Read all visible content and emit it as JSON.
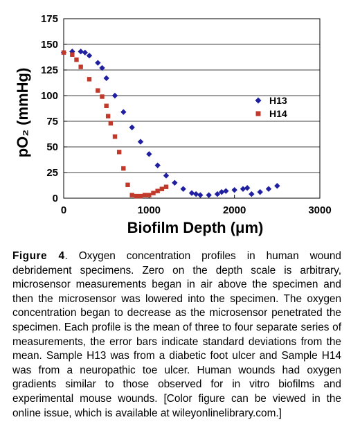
{
  "caption": {
    "label": "Figure 4",
    "text": ". Oxygen concentration profiles in human wound debridement specimens. Zero on the depth scale is arbitrary, microsensor measurements began in air above the specimen and then the microsensor was lowered into the specimen. The oxygen concentration began to decrease as the microsensor penetrated the specimen. Each profile is the mean of three to four separate series of measurements, the error bars indicate standard deviations from the mean. Sample H13 was from a diabetic foot ulcer and Sample H14 was from a neuropathic toe ulcer. Human wounds had oxygen gradients similar to those observed for in vitro biofilms and experimental mouse wounds. [Color figure can be viewed in the online issue, which is available at wileyonlinelibrary.com.]"
  },
  "chart_data": {
    "type": "scatter",
    "xlabel": "Biofilm Depth (μm)",
    "ylabel": "pO₂ (mmHg)",
    "xlim": [
      0,
      3000
    ],
    "ylim": [
      0,
      175
    ],
    "xticks": [
      "0",
      "1000",
      "2000",
      "3000"
    ],
    "yticks": [
      "0",
      "25",
      "50",
      "75",
      "100",
      "125",
      "150",
      "175"
    ],
    "grid": "horizontal",
    "legend_position": "right",
    "series": [
      {
        "name": "H13",
        "color": "#1f1fa0",
        "marker": "diamond",
        "x": [
          0,
          100,
          200,
          250,
          300,
          400,
          450,
          500,
          600,
          700,
          800,
          900,
          1000,
          1100,
          1200,
          1300,
          1400,
          1500,
          1550,
          1600,
          1700,
          1800,
          1850,
          1900,
          2000,
          2100,
          2150,
          2200,
          2300,
          2400,
          2500
        ],
        "y": [
          142,
          143,
          143,
          142,
          139,
          132,
          127,
          117,
          100,
          84,
          69,
          55,
          43,
          32,
          22,
          15,
          9,
          5,
          4,
          3,
          3,
          4,
          6,
          7,
          8,
          9,
          10,
          4,
          6,
          9,
          12
        ]
      },
      {
        "name": "H14",
        "color": "#c0392b",
        "marker": "square",
        "x": [
          0,
          100,
          150,
          200,
          300,
          400,
          450,
          500,
          520,
          550,
          600,
          650,
          700,
          750,
          800,
          850,
          900,
          950,
          1000,
          1050,
          1100,
          1150,
          1200
        ],
        "y": [
          142,
          140,
          135,
          128,
          116,
          105,
          99,
          90,
          80,
          73,
          60,
          45,
          29,
          13,
          3,
          2,
          2,
          3,
          3,
          5,
          7,
          9,
          11
        ]
      }
    ]
  }
}
